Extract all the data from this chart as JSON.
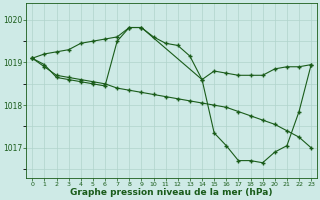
{
  "bg_color": "#ceeae6",
  "grid_color": "#b0d4cc",
  "line_color": "#1a5c1a",
  "xlabel": "Graphe pression niveau de la mer (hPa)",
  "xlabel_fontsize": 6.5,
  "ytick_values": [
    1017,
    1018,
    1019,
    1020
  ],
  "ylim": [
    1016.3,
    1020.4
  ],
  "xlim": [
    -0.5,
    23.5
  ],
  "series1_x": [
    0,
    1,
    2,
    3,
    4,
    5,
    6,
    7,
    8,
    9,
    10,
    11,
    12,
    13,
    14,
    15,
    16,
    17,
    18,
    19,
    20,
    21,
    22,
    23
  ],
  "series1_y": [
    1019.1,
    1019.2,
    1019.25,
    1019.3,
    1019.45,
    1019.5,
    1019.55,
    1019.6,
    1019.82,
    1019.82,
    1019.6,
    1019.45,
    1019.4,
    1019.15,
    1018.6,
    1018.8,
    1018.75,
    1018.7,
    1018.7,
    1018.7,
    1018.85,
    1018.9,
    1018.9,
    1018.95
  ],
  "series2_x": [
    0,
    1,
    2,
    3,
    4,
    5,
    6,
    7,
    8,
    9,
    10,
    11,
    12,
    13,
    14,
    15,
    16,
    17,
    18,
    19,
    20,
    21,
    22,
    23
  ],
  "series2_y": [
    1019.1,
    1018.9,
    1018.7,
    1018.65,
    1018.6,
    1018.55,
    1018.5,
    1018.4,
    1018.35,
    1018.3,
    1018.25,
    1018.2,
    1018.15,
    1018.1,
    1018.05,
    1018.0,
    1017.95,
    1017.85,
    1017.75,
    1017.65,
    1017.55,
    1017.4,
    1017.25,
    1017.0
  ],
  "series3_x": [
    0,
    1,
    2,
    3,
    4,
    5,
    6,
    7,
    8,
    9,
    14,
    15,
    16,
    17,
    18,
    19,
    20,
    21,
    22,
    23
  ],
  "series3_y": [
    1019.1,
    1018.95,
    1018.65,
    1018.6,
    1018.55,
    1018.5,
    1018.45,
    1019.5,
    1019.82,
    1019.82,
    1018.6,
    1017.35,
    1017.05,
    1016.7,
    1016.7,
    1016.65,
    1016.9,
    1017.05,
    1017.85,
    1018.95
  ]
}
